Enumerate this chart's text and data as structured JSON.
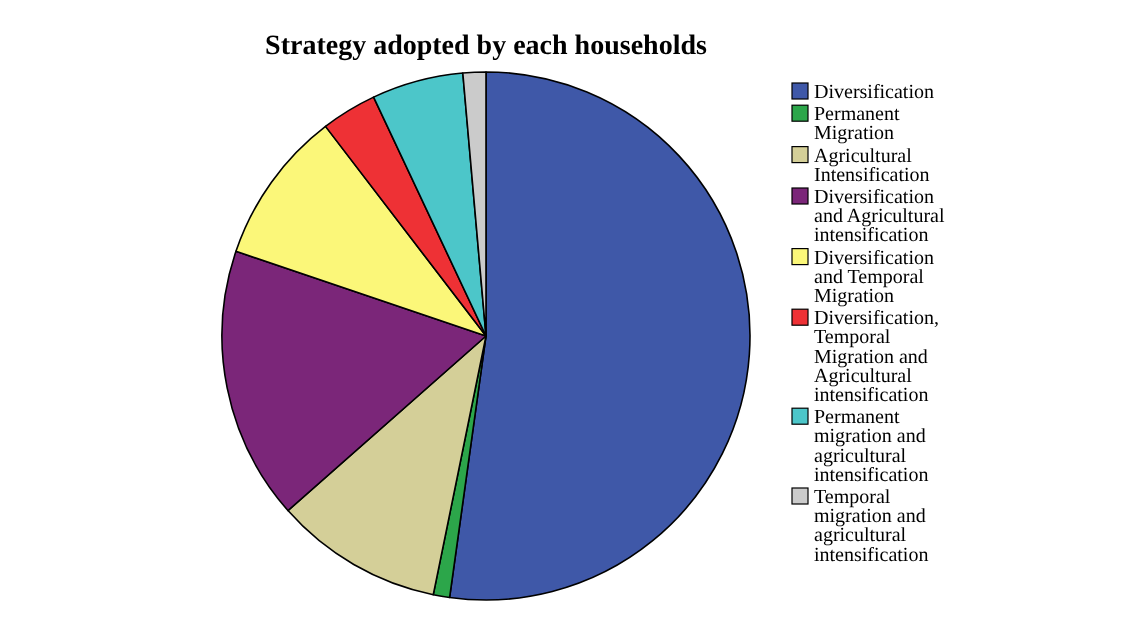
{
  "chart_data": {
    "type": "pie",
    "title": "Strategy adopted by each households",
    "categories": [
      "Diversification",
      "Permanent Migration",
      "Agricultural Intensification",
      "Diversification and Agricultural intensification",
      "Diversification and Temporal Migration",
      "Diversification, Temporal Migration and Agricultural intensification",
      "Permanent migration and agricultural intensification",
      "Temporal migration and agricultural intensification"
    ],
    "values": [
      52.2,
      1,
      10.3,
      16.7,
      9.4,
      3.4,
      5.6,
      1.4
    ],
    "colors": [
      "#3f58a8",
      "#2ca64a",
      "#d4cf98",
      "#7b2679",
      "#fbf779",
      "#ee3135",
      "#4cc6c9",
      "#cbcbcb"
    ],
    "legend": "right"
  }
}
